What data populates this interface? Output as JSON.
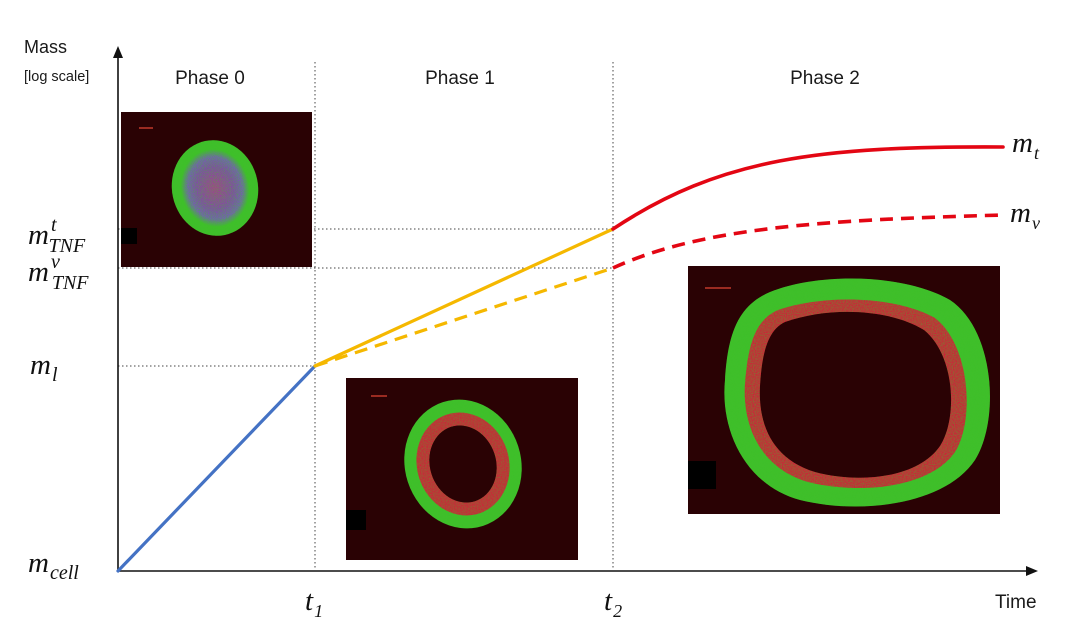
{
  "axes": {
    "y_title": "Mass",
    "y_subtitle": "[log scale]",
    "x_title": "Time"
  },
  "phases": [
    {
      "label": "Phase 0"
    },
    {
      "label": "Phase 1"
    },
    {
      "label": "Phase 2"
    }
  ],
  "y_markers": [
    {
      "base": "m",
      "sub": "TNF",
      "sup": "t"
    },
    {
      "base": "m",
      "sub": "TNF",
      "sup": "v"
    },
    {
      "base": "m",
      "sub": "l",
      "sup": ""
    },
    {
      "base": "m",
      "sub": "cell",
      "sup": ""
    }
  ],
  "x_markers": [
    {
      "base": "t",
      "sub": "1"
    },
    {
      "base": "t",
      "sub": "2"
    }
  ],
  "curve_labels": [
    {
      "base": "m",
      "sub": "t"
    },
    {
      "base": "m",
      "sub": "v"
    }
  ],
  "images": [
    {
      "name": "phase-0-spheroid-image",
      "kind": "solid"
    },
    {
      "name": "phase-1-ring-image",
      "kind": "ring-small"
    },
    {
      "name": "phase-2-ring-image",
      "kind": "ring-large"
    }
  ],
  "colors": {
    "phase0_line": "#4472c4",
    "phase1_line": "#f5b800",
    "phase2_line": "#e30613",
    "micro_green": "#3fbf2a",
    "micro_red": "#d9163a",
    "micro_blue": "#6a52c8",
    "micro_bg": "#2a0204"
  }
}
